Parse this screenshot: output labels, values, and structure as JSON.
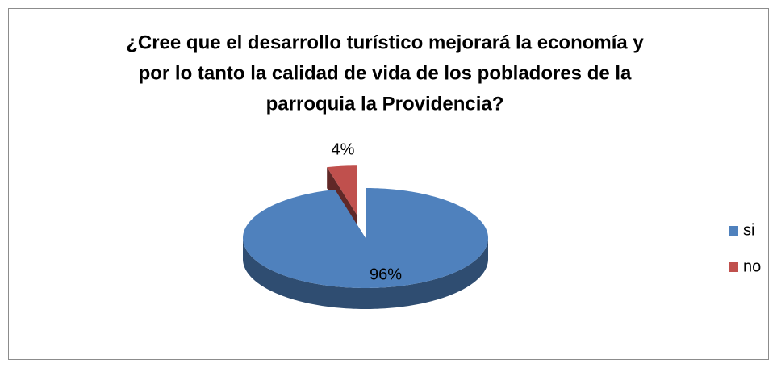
{
  "chart_data": {
    "type": "pie",
    "title": [
      "¿Cree que el desarrollo turístico mejorará la economía y",
      "por lo tanto la calidad de vida de los pobladores de la",
      "parroquia la Providencia?"
    ],
    "categories": [
      "si",
      "no"
    ],
    "values": [
      96,
      4
    ],
    "value_labels": [
      "96%",
      "4%"
    ],
    "colors": [
      "#4f81bd",
      "#c0504d"
    ],
    "legend": "right"
  }
}
